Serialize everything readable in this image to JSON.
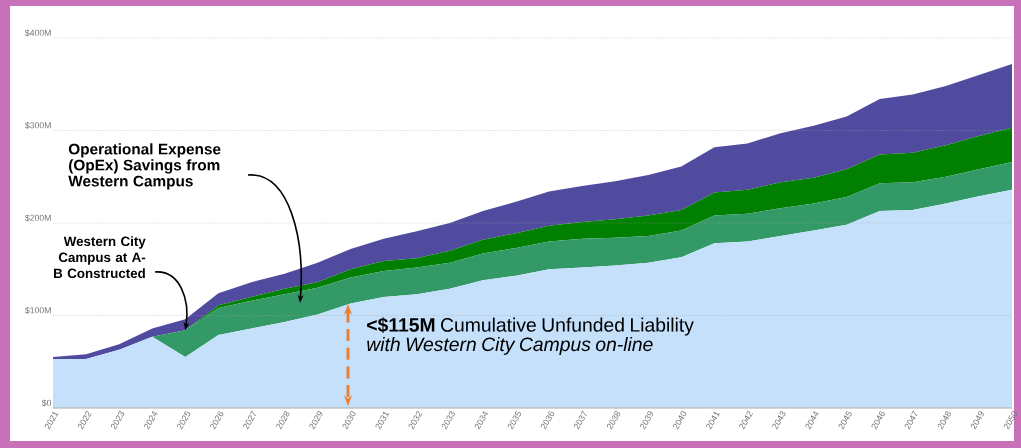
{
  "chart_data": {
    "type": "area",
    "stacked": true,
    "categories": [
      "2021",
      "2022",
      "2023",
      "2024",
      "2025",
      "2026",
      "2027",
      "2028",
      "2029",
      "2030",
      "2031",
      "2032",
      "2033",
      "2034",
      "2035",
      "2036",
      "2037",
      "2038",
      "2039",
      "2040",
      "2041",
      "2042",
      "2043",
      "2044",
      "2045",
      "2046",
      "2047",
      "2048",
      "2049",
      "2050"
    ],
    "series": [
      {
        "color": "#c5e0fb",
        "values": [
          53,
          53,
          63,
          77,
          55,
          79,
          86,
          93,
          101,
          113,
          120,
          123,
          129,
          138,
          143,
          150,
          152,
          154,
          157,
          163,
          178,
          180,
          186,
          192,
          198,
          213,
          214,
          221,
          229,
          236
        ]
      },
      {
        "color": "#339966",
        "values": [
          0,
          0,
          0,
          0,
          29,
          29,
          30,
          30,
          29,
          28,
          28,
          29,
          28,
          29,
          30,
          30,
          31,
          30,
          29,
          29,
          30,
          30,
          30,
          29,
          30,
          30,
          30,
          29,
          29,
          30
        ]
      },
      {
        "color": "#007f00",
        "values": [
          0,
          0,
          0,
          0,
          0,
          3,
          4,
          6,
          6,
          9,
          11,
          10,
          13,
          15,
          16,
          17,
          18,
          20,
          22,
          22,
          25,
          26,
          28,
          28,
          30,
          31,
          32,
          34,
          36,
          37
        ]
      },
      {
        "color": "#514b9f",
        "values": [
          2,
          5,
          6,
          9,
          12,
          13,
          16,
          16,
          21,
          22,
          24,
          29,
          30,
          31,
          34,
          37,
          39,
          41,
          44,
          47,
          49,
          50,
          53,
          56,
          57,
          60,
          63,
          64,
          66,
          69
        ]
      }
    ],
    "ylim": [
      0,
      400
    ],
    "yticks": [
      {
        "value": 0,
        "label": "$0"
      },
      {
        "value": 100,
        "label": "$100M"
      },
      {
        "value": 200,
        "label": "$200M"
      },
      {
        "value": 300,
        "label": "$300M"
      },
      {
        "value": 400,
        "label": "$400M"
      }
    ],
    "grid": "y",
    "annotations": [
      "Operational Expense (OpEx) Savings from Western Campus",
      {
        "text": "Western City Campus at A-B Constructed",
        "x": "2025",
        "y": 84
      },
      "**<$115M** Cumulative Unfunded Liability *with Western City Campus on-line*"
    ]
  }
}
